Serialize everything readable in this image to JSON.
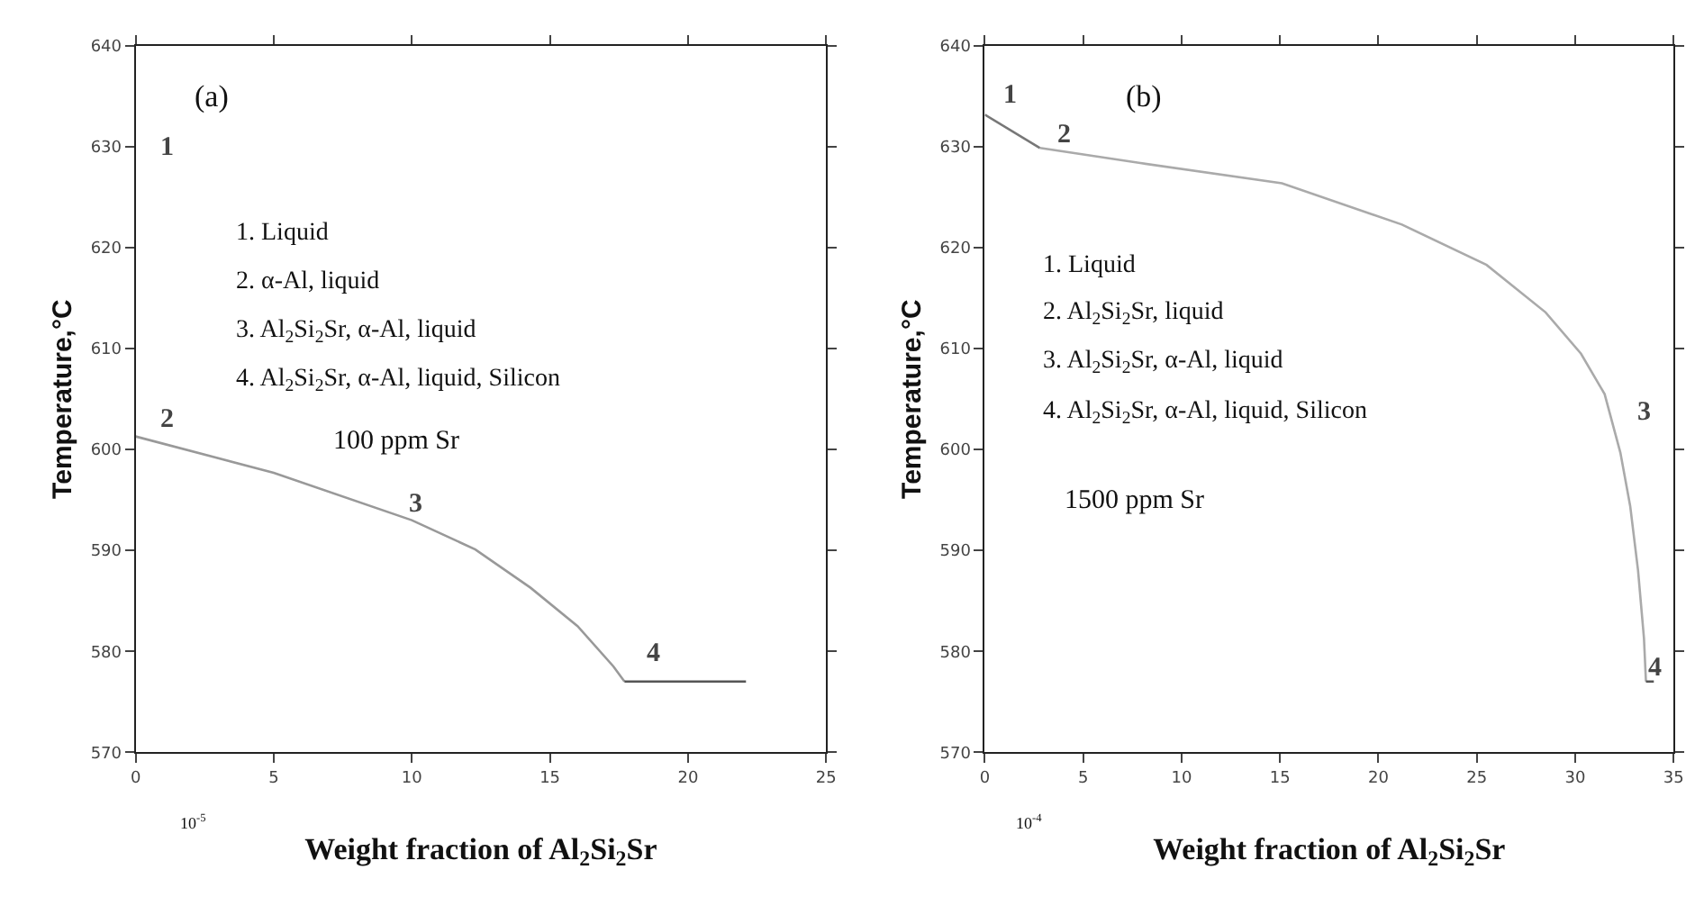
{
  "chart_data": [
    {
      "type": "line",
      "xlabel": "Weight fraction of Al$_{2}$Si$_{2}$Sr",
      "ylabel": "Temperature,°C",
      "xlim": [
        0,
        25
      ],
      "ylim": [
        570,
        640
      ],
      "xticks": [
        0,
        5,
        10,
        15,
        20,
        25
      ],
      "yticks": [
        570,
        580,
        590,
        600,
        610,
        620,
        630,
        640
      ],
      "grid": false,
      "series": [
        {
          "color": "#999999",
          "x": [
            0,
            5,
            10,
            12.3,
            14.3,
            16.0,
            17.3,
            17.7
          ],
          "values": [
            601.3,
            597.7,
            593.0,
            590.1,
            586.3,
            582.5,
            578.5,
            577
          ]
        },
        {
          "color": "#555555",
          "x": [
            17.7,
            22.1
          ],
          "values": [
            577,
            577
          ]
        }
      ],
      "annotations": [
        "(a)",
        "1. Liquid",
        "2. α-Al, liquid",
        "3. Al$_{2}$Si$_{2}$Sr, α-Al, liquid",
        "4. Al$_{2}$Si$_{2}$Sr, α-Al, liquid, Silicon",
        "100 ppm Sr",
        "10$^{-5}$",
        "1",
        "2",
        "3",
        "4"
      ]
    },
    {
      "type": "line",
      "xlabel": "Weight fraction of Al$_{2}$Si$_{2}$Sr",
      "ylabel": "Temperature,°C",
      "xlim": [
        0,
        35
      ],
      "ylim": [
        570,
        640
      ],
      "xticks": [
        0,
        5,
        10,
        15,
        20,
        25,
        30,
        35
      ],
      "yticks": [
        570,
        580,
        590,
        600,
        610,
        620,
        630,
        640
      ],
      "grid": false,
      "series": [
        {
          "color": "#777777",
          "x": [
            0,
            2.8
          ],
          "values": [
            633.2,
            629.9
          ]
        },
        {
          "color": "#aaaaaa",
          "x": [
            2.8,
            7.9,
            15.1,
            21.2,
            25.5,
            28.5,
            30.3,
            31.5,
            32.3,
            32.8,
            33.2,
            33.5,
            33.6
          ],
          "values": [
            629.9,
            628.4,
            626.4,
            622.3,
            618.3,
            613.6,
            609.5,
            605.5,
            599.7,
            594.4,
            588.0,
            581.3,
            577
          ]
        },
        {
          "color": "#555555",
          "x": [
            33.6,
            34.0
          ],
          "values": [
            577,
            577
          ]
        }
      ],
      "annotations": [
        "(b)",
        "1. Liquid",
        "2. Al$_{2}$Si$_{2}$Sr, liquid",
        "3. Al$_{2}$Si$_{2}$Sr, α-Al, liquid",
        "4. Al$_{2}$Si$_{2}$Sr, α-Al, liquid, Silicon",
        "1500 ppm Sr",
        "10$^{-4}$",
        "1",
        "2",
        "3",
        "4"
      ]
    }
  ]
}
